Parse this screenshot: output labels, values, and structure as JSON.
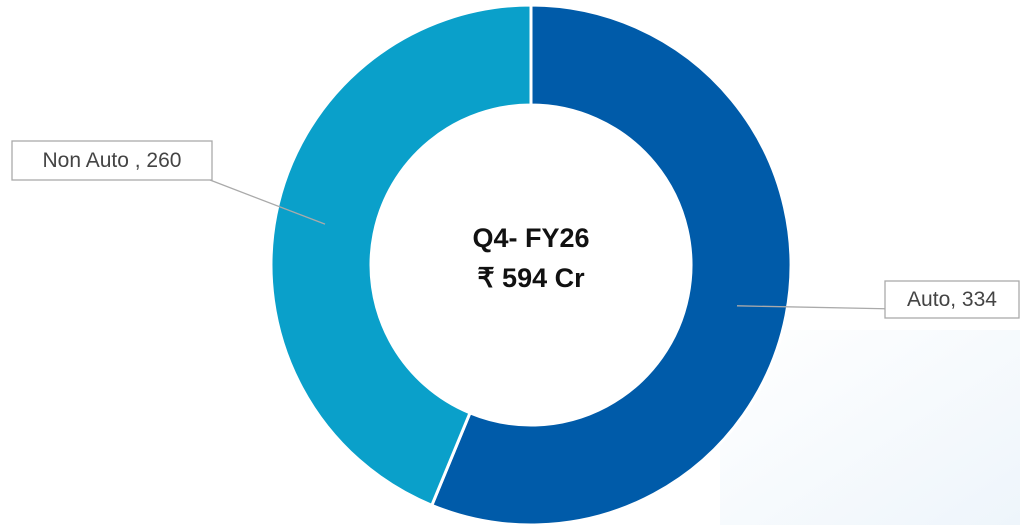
{
  "chart_data": {
    "type": "donut",
    "center_text": [
      "Q4- FY26",
      "₹ 594 Cr"
    ],
    "values": [
      334,
      260
    ],
    "value_labels": [
      "Auto, 334",
      "Non Auto , 260"
    ],
    "colors": [
      "#005ba9",
      "#0aa0ca"
    ]
  }
}
